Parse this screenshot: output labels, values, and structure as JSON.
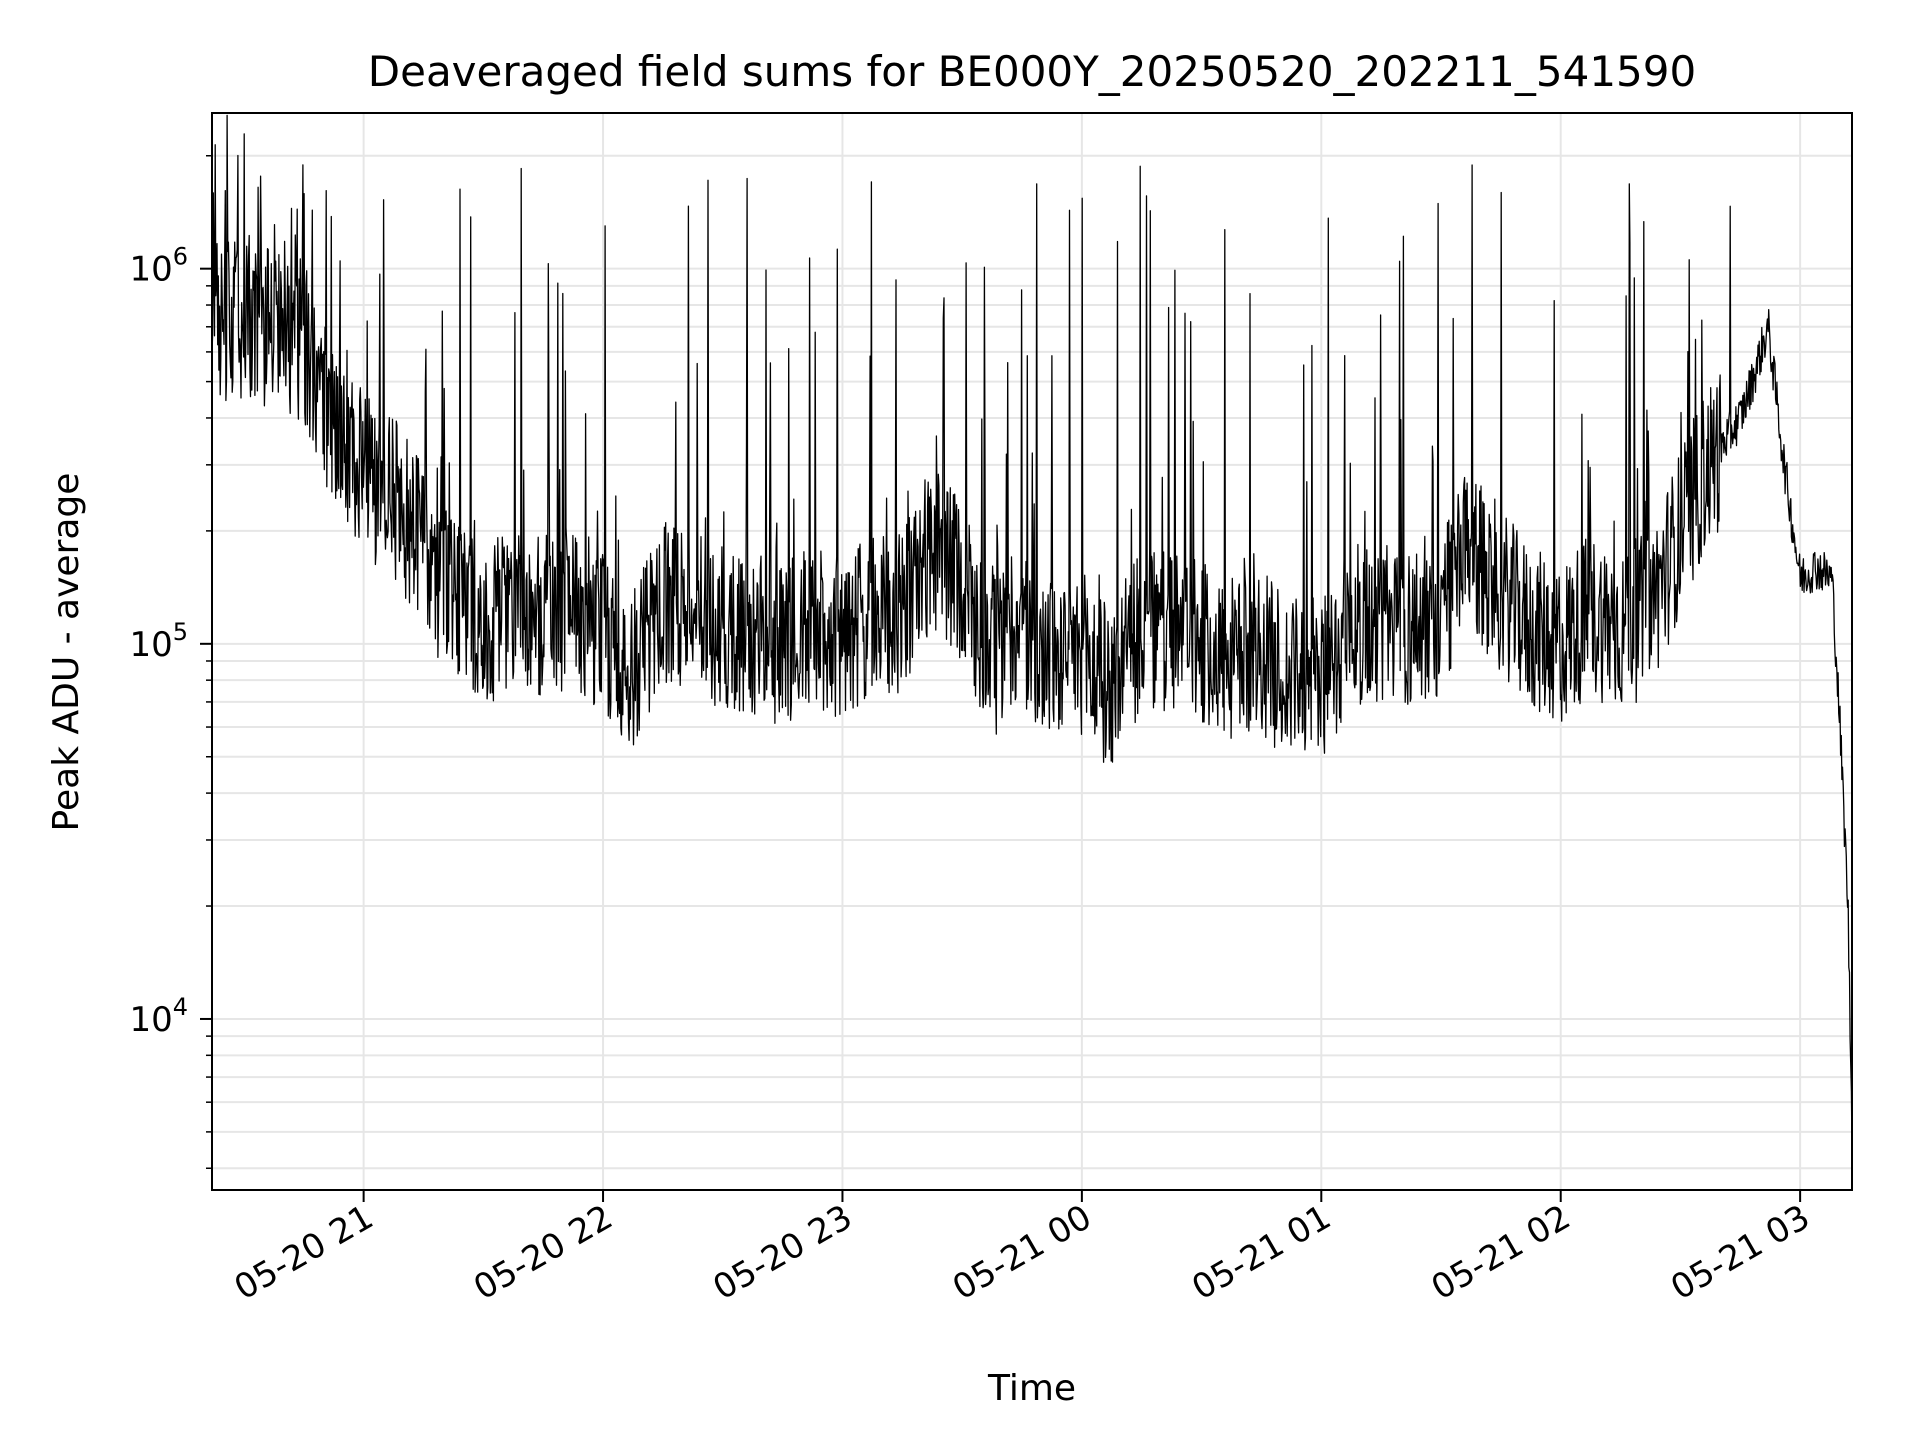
{
  "chart_data": {
    "type": "line",
    "title": "Deaveraged field sums for BE000Y_20250520_202211_541590",
    "xlabel": "Time",
    "ylabel": "Peak ADU - average",
    "y_scale": "log",
    "ylim": [
      3500,
      2600000
    ],
    "xlim": [
      "2025-05-20 20:22",
      "2025-05-21 03:13"
    ],
    "grid": true,
    "line_color": "#000000",
    "x_ticks": [
      {
        "t": "2025-05-20 21:00",
        "label": "05-20 21"
      },
      {
        "t": "2025-05-20 22:00",
        "label": "05-20 22"
      },
      {
        "t": "2025-05-20 23:00",
        "label": "05-20 23"
      },
      {
        "t": "2025-05-21 00:00",
        "label": "05-21 00"
      },
      {
        "t": "2025-05-21 01:00",
        "label": "05-21 01"
      },
      {
        "t": "2025-05-21 02:00",
        "label": "05-21 02"
      },
      {
        "t": "2025-05-21 03:00",
        "label": "05-21 03"
      }
    ],
    "y_ticks": [
      {
        "value": 10000,
        "base": "10",
        "exp": "4"
      },
      {
        "value": 100000,
        "base": "10",
        "exp": "5"
      },
      {
        "value": 1000000,
        "base": "10",
        "exp": "6"
      }
    ],
    "series": [
      {
        "x": [
          "2025-05-20 20:22",
          "2025-05-20 20:30",
          "2025-05-20 20:37",
          "2025-05-20 20:45",
          "2025-05-20 20:52",
          "2025-05-20 21:00",
          "2025-05-20 21:07",
          "2025-05-20 21:15",
          "2025-05-20 21:22",
          "2025-05-20 21:30",
          "2025-05-20 21:37",
          "2025-05-20 21:45",
          "2025-05-20 21:52",
          "2025-05-20 22:00",
          "2025-05-20 22:07",
          "2025-05-20 22:15",
          "2025-05-20 22:22",
          "2025-05-20 22:30",
          "2025-05-20 22:37",
          "2025-05-20 22:45",
          "2025-05-20 22:52",
          "2025-05-20 23:00",
          "2025-05-20 23:07",
          "2025-05-20 23:15",
          "2025-05-20 23:22",
          "2025-05-20 23:30",
          "2025-05-20 23:37",
          "2025-05-20 23:45",
          "2025-05-20 23:52",
          "2025-05-21 00:00",
          "2025-05-21 00:07",
          "2025-05-21 00:15",
          "2025-05-21 00:22",
          "2025-05-21 00:30",
          "2025-05-21 00:37",
          "2025-05-21 00:45",
          "2025-05-21 00:52",
          "2025-05-21 01:00",
          "2025-05-21 01:07",
          "2025-05-21 01:15",
          "2025-05-21 01:22",
          "2025-05-21 01:30",
          "2025-05-21 01:37",
          "2025-05-21 01:45",
          "2025-05-21 01:52",
          "2025-05-21 02:00",
          "2025-05-21 02:07",
          "2025-05-21 02:15",
          "2025-05-21 02:22",
          "2025-05-21 02:30",
          "2025-05-21 02:37",
          "2025-05-21 02:45",
          "2025-05-21 02:48",
          "2025-05-21 02:52",
          "2025-05-21 02:56",
          "2025-05-21 03:00",
          "2025-05-21 03:04",
          "2025-05-21 03:08",
          "2025-05-21 03:10",
          "2025-05-21 03:12",
          "2025-05-21 03:13"
        ],
        "y": [
          700000,
          750000,
          700000,
          650000,
          400000,
          280000,
          250000,
          180000,
          130000,
          110000,
          130000,
          120000,
          125000,
          110000,
          80000,
          130000,
          120000,
          110000,
          105000,
          100000,
          110000,
          105000,
          115000,
          120000,
          180000,
          150000,
          90000,
          110000,
          90000,
          95000,
          75000,
          110000,
          105000,
          100000,
          90000,
          95000,
          80000,
          80000,
          110000,
          115000,
          110000,
          120000,
          180000,
          140000,
          110000,
          100000,
          120000,
          110000,
          120000,
          200000,
          300000,
          400000,
          500000,
          700000,
          300000,
          150000,
          160000,
          150000,
          60000,
          20000,
          5000
        ],
        "spike_count": 75,
        "spike_peak_range": [
          500000,
          1900000
        ]
      }
    ]
  }
}
